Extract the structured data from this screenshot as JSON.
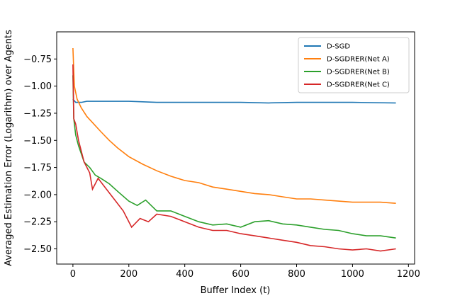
{
  "chart_data": {
    "type": "line",
    "x_label": "Buffer Index (t)",
    "y_label": "Averaged Estimation Error (Logarithm) over Agents",
    "xlim": [
      -58,
      1222
    ],
    "ylim": [
      -2.64,
      -0.5
    ],
    "xticks": [
      0,
      200,
      400,
      600,
      800,
      1000,
      1200
    ],
    "yticks": [
      {
        "value": -0.75,
        "label": "−0.75"
      },
      {
        "value": -1.0,
        "label": "−1.00"
      },
      {
        "value": -1.25,
        "label": "−1.25"
      },
      {
        "value": -1.5,
        "label": "−1.50"
      },
      {
        "value": -1.75,
        "label": "−1.75"
      },
      {
        "value": -2.0,
        "label": "−2.00"
      },
      {
        "value": -2.25,
        "label": "−2.25"
      },
      {
        "value": -2.5,
        "label": "−2.50"
      }
    ],
    "legend": "upper right",
    "series": [
      {
        "name": "D-SGD",
        "color": "#1f77b4",
        "x": [
          0,
          10,
          30,
          50,
          100,
          200,
          300,
          400,
          500,
          600,
          700,
          800,
          900,
          1000,
          1155
        ],
        "values": [
          -1.12,
          -1.15,
          -1.15,
          -1.14,
          -1.14,
          -1.14,
          -1.15,
          -1.15,
          -1.15,
          -1.15,
          -1.155,
          -1.15,
          -1.15,
          -1.15,
          -1.155
        ]
      },
      {
        "name": "D-SGDRER(Net A)",
        "color": "#ff7f0e",
        "x": [
          0,
          5,
          15,
          30,
          50,
          75,
          100,
          130,
          160,
          200,
          250,
          300,
          350,
          400,
          450,
          500,
          550,
          600,
          650,
          700,
          750,
          800,
          850,
          900,
          950,
          1000,
          1050,
          1100,
          1155
        ],
        "values": [
          -0.65,
          -1.0,
          -1.12,
          -1.2,
          -1.28,
          -1.35,
          -1.42,
          -1.5,
          -1.57,
          -1.65,
          -1.72,
          -1.78,
          -1.83,
          -1.87,
          -1.89,
          -1.93,
          -1.95,
          -1.97,
          -1.99,
          -2.0,
          -2.02,
          -2.04,
          -2.04,
          -2.05,
          -2.06,
          -2.07,
          -2.07,
          -2.07,
          -2.08
        ]
      },
      {
        "name": "D-SGDRER(Net B)",
        "color": "#2ca02c",
        "x": [
          0,
          3,
          10,
          20,
          40,
          60,
          80,
          100,
          130,
          160,
          200,
          230,
          260,
          300,
          350,
          400,
          450,
          500,
          550,
          600,
          650,
          700,
          750,
          800,
          850,
          900,
          950,
          1000,
          1050,
          1100,
          1155
        ],
        "values": [
          -0.9,
          -1.3,
          -1.45,
          -1.55,
          -1.7,
          -1.75,
          -1.82,
          -1.85,
          -1.9,
          -1.97,
          -2.06,
          -2.1,
          -2.05,
          -2.15,
          -2.15,
          -2.2,
          -2.25,
          -2.28,
          -2.27,
          -2.3,
          -2.25,
          -2.24,
          -2.27,
          -2.28,
          -2.3,
          -2.32,
          -2.33,
          -2.36,
          -2.38,
          -2.38,
          -2.4
        ]
      },
      {
        "name": "D-SGDRER(Net C)",
        "color": "#d62728",
        "x": [
          0,
          3,
          10,
          20,
          40,
          60,
          70,
          90,
          120,
          150,
          180,
          210,
          240,
          270,
          300,
          350,
          400,
          450,
          500,
          550,
          600,
          650,
          700,
          750,
          800,
          850,
          900,
          950,
          1000,
          1050,
          1100,
          1155
        ],
        "values": [
          -0.8,
          -1.3,
          -1.35,
          -1.5,
          -1.7,
          -1.8,
          -1.95,
          -1.85,
          -1.95,
          -2.05,
          -2.15,
          -2.3,
          -2.22,
          -2.25,
          -2.18,
          -2.2,
          -2.25,
          -2.3,
          -2.33,
          -2.33,
          -2.36,
          -2.38,
          -2.4,
          -2.42,
          -2.44,
          -2.47,
          -2.48,
          -2.5,
          -2.51,
          -2.5,
          -2.52,
          -2.5
        ]
      }
    ]
  }
}
